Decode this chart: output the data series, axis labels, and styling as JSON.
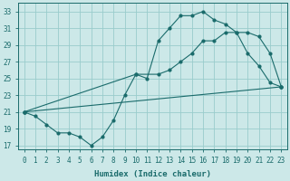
{
  "xlabel": "Humidex (Indice chaleur)",
  "ylabel": "",
  "bg_color": "#cce8e8",
  "grid_color": "#99cccc",
  "line_color": "#1a6b6b",
  "xlim": [
    -0.5,
    23.5
  ],
  "ylim": [
    16.5,
    34.0
  ],
  "xticks": [
    0,
    1,
    2,
    3,
    4,
    5,
    6,
    7,
    8,
    9,
    10,
    11,
    12,
    13,
    14,
    15,
    16,
    17,
    18,
    19,
    20,
    21,
    22,
    23
  ],
  "yticks": [
    17,
    19,
    21,
    23,
    25,
    27,
    29,
    31,
    33
  ],
  "line1_x": [
    0,
    1,
    2,
    3,
    4,
    5,
    6,
    7,
    8,
    9,
    10,
    11,
    12,
    13,
    14,
    15,
    16,
    17,
    18,
    19,
    20,
    21,
    22,
    23
  ],
  "line1_y": [
    21.0,
    20.5,
    19.5,
    18.5,
    18.5,
    18.0,
    17.0,
    18.0,
    20.0,
    23.0,
    25.5,
    25.0,
    29.5,
    31.0,
    32.5,
    32.5,
    33.0,
    32.0,
    31.5,
    30.5,
    28.0,
    26.5,
    24.5,
    24.0
  ],
  "line2_x": [
    0,
    10,
    12,
    13,
    14,
    15,
    16,
    17,
    18,
    19,
    20,
    21,
    22,
    23
  ],
  "line2_y": [
    21.0,
    25.5,
    25.5,
    26.0,
    27.0,
    28.0,
    29.5,
    29.5,
    30.5,
    30.5,
    30.5,
    30.0,
    28.0,
    24.0
  ],
  "line3_x": [
    0,
    23
  ],
  "line3_y": [
    21.0,
    24.0
  ]
}
